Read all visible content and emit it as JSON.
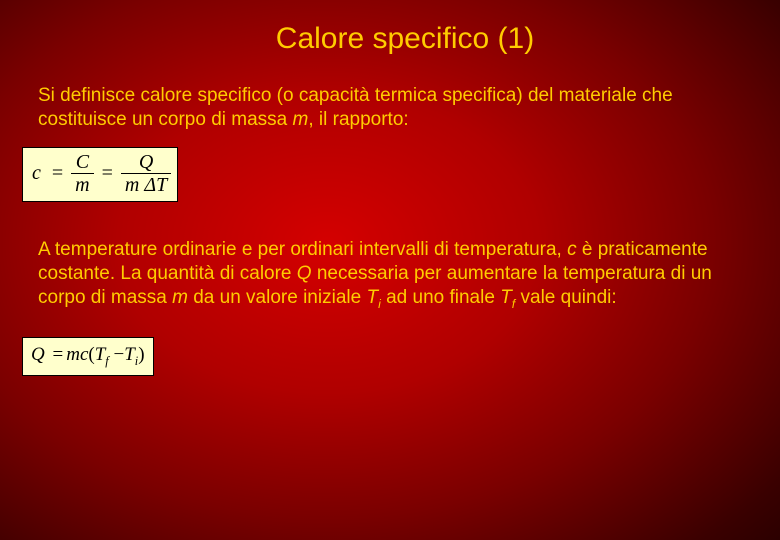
{
  "slide": {
    "title": "Calore specifico (1)",
    "background": {
      "gradient_center": "#d40000",
      "gradient_mid": "#7a0000",
      "gradient_edge": "#150000"
    },
    "text_color": "#ffcc00",
    "title_fontsize": 30,
    "body_fontsize": 19,
    "font_family": "Verdana",
    "para1": {
      "t1": "Si definisce calore specifico (o capacità termica specifica) del materiale che costituisce un corpo di massa ",
      "m": "m",
      "t2": ", il rapporto:"
    },
    "eq1": {
      "box_bg": "#ffffcc",
      "box_border": "#000000",
      "text_color": "#000000",
      "lhs": "c",
      "eq": "=",
      "frac1_num": "C",
      "frac1_den": "m",
      "frac2_num": "Q",
      "frac2_den_m": "m",
      "frac2_den_dT": "ΔT"
    },
    "para2": {
      "t1": "A temperature ordinarie e per ordinari intervalli di temperatura, ",
      "c": "c",
      "t2": " è praticamente costante. La quantità di calore ",
      "Q": "Q",
      "t3": "  necessaria per aumentare la temperatura di un corpo di massa ",
      "m": "m",
      "t4": "  da un valore iniziale ",
      "Ti_T": "T",
      "Ti_i": "i",
      "t5": "  ad uno finale ",
      "Tf_T": "T",
      "Tf_f": "f",
      "t6": " vale quindi:"
    },
    "eq2": {
      "box_bg": "#ffffcc",
      "box_border": "#000000",
      "text_color": "#000000",
      "Q": "Q",
      "eq": "=",
      "m": "m",
      "c": "c",
      "lpar": "(",
      "Tf_T": "T",
      "Tf_f": "f",
      "minus": "−",
      "Ti_T": "T",
      "Ti_i": "i",
      "rpar": ")"
    }
  }
}
